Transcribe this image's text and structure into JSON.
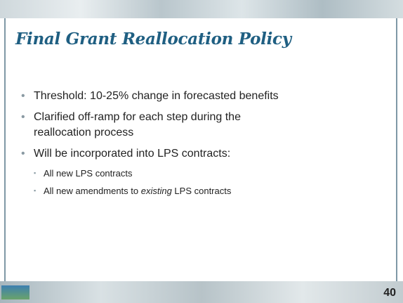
{
  "title": "Final Grant Reallocation Policy",
  "bullets": [
    {
      "text": "Threshold: 10-25% change in forecasted benefits"
    },
    {
      "text": "Clarified off-ramp for each step during the reallocation process"
    },
    {
      "text": "Will be incorporated into LPS contracts:",
      "sub_bullets": [
        {
          "parts": [
            "All new LPS contracts"
          ]
        },
        {
          "parts": [
            "All new amendments to ",
            "existing",
            " LPS contracts"
          ]
        }
      ]
    }
  ],
  "page_number": "40"
}
